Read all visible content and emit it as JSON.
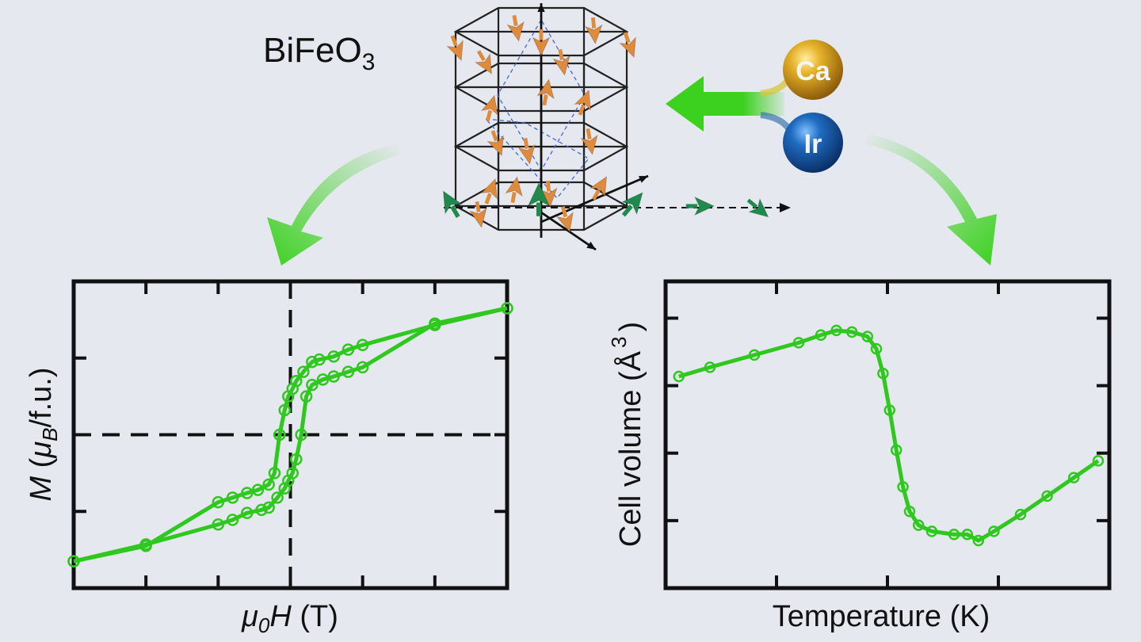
{
  "compound": {
    "formula": "BiFeO",
    "subscript": "3"
  },
  "dopants": [
    {
      "symbol": "Ca",
      "color": "#d9a31c"
    },
    {
      "symbol": "Ir",
      "color": "#1c5fa8"
    }
  ],
  "colors": {
    "background": "#e6e8ef",
    "green_series": "#2ec81e",
    "spin_orange": "#e08a3c",
    "spin_green": "#1f8a4c",
    "arrow_green": "#3bd11e"
  },
  "chart_data": [
    {
      "type": "line",
      "title": "",
      "xlabel": {
        "italic": "μ",
        "sub": "0",
        "italic2": "H",
        "rest": " (T)"
      },
      "ylabel": {
        "italic": "M",
        "rest1": " (",
        "italic2": "μ",
        "sub": "B",
        "rest2": "/f.u.)"
      },
      "xlim": [
        -3,
        3
      ],
      "ylim": [
        -2,
        2
      ],
      "ticks_x": [
        -3,
        -2,
        -1,
        0,
        1,
        2,
        3
      ],
      "ticks_y": [
        -2,
        -1,
        0,
        1,
        2
      ],
      "grid": false,
      "reference_lines": {
        "x": 0,
        "y": 0
      },
      "series": [
        {
          "points": [
            [
              3.0,
              1.65
            ],
            [
              2.0,
              1.43
            ],
            [
              1.0,
              1.17
            ],
            [
              0.8,
              1.11
            ],
            [
              0.6,
              1.02
            ],
            [
              0.4,
              0.98
            ],
            [
              0.3,
              0.95
            ],
            [
              0.18,
              0.82
            ],
            [
              0.08,
              0.7
            ],
            [
              0.03,
              0.6
            ],
            [
              -0.03,
              0.5
            ],
            [
              -0.08,
              0.32
            ],
            [
              -0.15,
              0.0
            ],
            [
              -0.22,
              -0.5
            ],
            [
              -0.3,
              -0.65
            ],
            [
              -0.45,
              -0.72
            ],
            [
              -0.6,
              -0.76
            ],
            [
              -0.8,
              -0.82
            ],
            [
              -1.0,
              -0.88
            ],
            [
              -2.0,
              -1.45
            ],
            [
              -3.0,
              -1.65
            ]
          ]
        },
        {
          "points": [
            [
              -3.0,
              -1.65
            ],
            [
              -2.0,
              -1.43
            ],
            [
              -1.0,
              -1.17
            ],
            [
              -0.8,
              -1.11
            ],
            [
              -0.6,
              -1.02
            ],
            [
              -0.4,
              -0.98
            ],
            [
              -0.3,
              -0.95
            ],
            [
              -0.18,
              -0.82
            ],
            [
              -0.08,
              -0.7
            ],
            [
              -0.03,
              -0.6
            ],
            [
              0.03,
              -0.5
            ],
            [
              0.08,
              -0.32
            ],
            [
              0.15,
              0.0
            ],
            [
              0.22,
              0.5
            ],
            [
              0.3,
              0.65
            ],
            [
              0.45,
              0.72
            ],
            [
              0.6,
              0.76
            ],
            [
              0.8,
              0.82
            ],
            [
              1.0,
              0.88
            ],
            [
              2.0,
              1.45
            ],
            [
              3.0,
              1.65
            ]
          ]
        }
      ]
    },
    {
      "type": "line",
      "title": "",
      "xlabel": {
        "rest": "Temperature (K)"
      },
      "ylabel": {
        "rest": "Cell volume (",
        "special": "Å",
        "sup": "3",
        "close": ")"
      },
      "xlim": [
        0,
        10
      ],
      "ylim": [
        0,
        10
      ],
      "ticks_x": [
        0,
        2.5,
        5,
        7.5,
        10
      ],
      "ticks_y": [
        0,
        2.2,
        4.4,
        6.6,
        8.8
      ],
      "grid": false,
      "series": [
        {
          "points": [
            [
              0.3,
              6.9
            ],
            [
              1.0,
              7.2
            ],
            [
              2.0,
              7.6
            ],
            [
              3.0,
              8.0
            ],
            [
              3.5,
              8.25
            ],
            [
              3.85,
              8.4
            ],
            [
              4.2,
              8.35
            ],
            [
              4.55,
              8.2
            ],
            [
              4.75,
              7.8
            ],
            [
              4.9,
              7.0
            ],
            [
              5.05,
              5.8
            ],
            [
              5.2,
              4.5
            ],
            [
              5.35,
              3.3
            ],
            [
              5.5,
              2.5
            ],
            [
              5.7,
              2.05
            ],
            [
              6.0,
              1.85
            ],
            [
              6.5,
              1.75
            ],
            [
              6.8,
              1.75
            ],
            [
              7.05,
              1.55
            ],
            [
              7.4,
              1.85
            ],
            [
              8.0,
              2.4
            ],
            [
              8.6,
              3.0
            ],
            [
              9.2,
              3.6
            ],
            [
              9.75,
              4.15
            ]
          ]
        }
      ]
    }
  ]
}
